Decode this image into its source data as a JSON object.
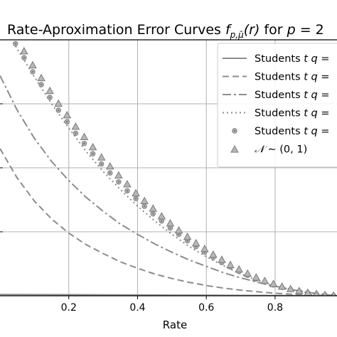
{
  "chart_data": {
    "type": "line",
    "title": "Rate-Aproximation Error Curves f_{p,μ̄}(r) for p = 2",
    "title_parts": {
      "main": "Rate-Aproximation Error Curves ",
      "func": "f",
      "func_sub": "p,",
      "func_sub_mu": "μ̄",
      "func_arg": "(r)",
      "mid": " for ",
      "p_var": "p",
      "p_eq": " = 2"
    },
    "xlabel": "Rate",
    "ylabel": "",
    "xlim": [
      0.0,
      0.98
    ],
    "ylim": [
      0.0,
      2.0
    ],
    "x_ticks": [
      0.2,
      0.4,
      0.6,
      0.8
    ],
    "x_tick_labels": [
      "0.2",
      "0.4",
      "0.6",
      "0.8"
    ],
    "y_gridlines": [
      0.5,
      1.0,
      1.5
    ],
    "grid": true,
    "legend_position": "top-right",
    "legend_labels": [
      {
        "prefix": "Students ",
        "var_t": "t",
        "mid": " ",
        "var_q": "q",
        "suffix": " ="
      },
      {
        "prefix": "Students ",
        "var_t": "t",
        "mid": " ",
        "var_q": "q",
        "suffix": " ="
      },
      {
        "prefix": "Students ",
        "var_t": "t",
        "mid": " ",
        "var_q": "q",
        "suffix": " ="
      },
      {
        "prefix": "Students ",
        "var_t": "t",
        "mid": " ",
        "var_q": "q",
        "suffix": " ="
      },
      {
        "prefix": "Students ",
        "var_t": "t",
        "mid": " ",
        "var_q": "q",
        "suffix": " ="
      },
      {
        "prefix": "",
        "var_n": "𝒩",
        "suffix": " ∼ (0, 1)"
      }
    ],
    "series": [
      {
        "name": "Students t q =",
        "style": "solid",
        "x": [
          0.0,
          0.1,
          0.2,
          0.3,
          0.4,
          0.5,
          0.6,
          0.7,
          0.8,
          0.9,
          0.98
        ],
        "y": [
          0.01,
          0.009,
          0.008,
          0.007,
          0.006,
          0.005,
          0.004,
          0.003,
          0.002,
          0.001,
          0.0
        ]
      },
      {
        "name": "Students t q =",
        "style": "dashed",
        "x": [
          0.0,
          0.05,
          0.1,
          0.15,
          0.2,
          0.25,
          0.3,
          0.35,
          0.4,
          0.45,
          0.5,
          0.55,
          0.6,
          0.65,
          0.7,
          0.75,
          0.8,
          0.85,
          0.9,
          0.95,
          0.98
        ],
        "y": [
          1.15,
          0.92,
          0.74,
          0.6,
          0.49,
          0.4,
          0.33,
          0.265,
          0.215,
          0.17,
          0.135,
          0.105,
          0.08,
          0.06,
          0.044,
          0.031,
          0.02,
          0.012,
          0.006,
          0.002,
          0.0
        ]
      },
      {
        "name": "Students t q =",
        "style": "dashdot",
        "x": [
          0.0,
          0.05,
          0.1,
          0.15,
          0.2,
          0.25,
          0.3,
          0.35,
          0.4,
          0.45,
          0.5,
          0.55,
          0.6,
          0.65,
          0.7,
          0.75,
          0.8,
          0.85,
          0.9,
          0.95,
          0.98
        ],
        "y": [
          1.72,
          1.45,
          1.23,
          1.05,
          0.9,
          0.77,
          0.66,
          0.56,
          0.48,
          0.405,
          0.34,
          0.28,
          0.23,
          0.18,
          0.14,
          0.105,
          0.075,
          0.048,
          0.025,
          0.008,
          0.0
        ]
      },
      {
        "name": "Students t q =",
        "style": "dotted",
        "x": [
          0.0,
          0.05,
          0.1,
          0.15,
          0.2,
          0.25,
          0.3,
          0.35,
          0.4,
          0.45,
          0.5,
          0.55,
          0.6,
          0.65,
          0.7,
          0.75,
          0.8,
          0.85,
          0.9,
          0.95,
          0.98
        ],
        "y": [
          2.15,
          1.93,
          1.71,
          1.5,
          1.31,
          1.13,
          0.97,
          0.83,
          0.7,
          0.585,
          0.48,
          0.385,
          0.305,
          0.235,
          0.17,
          0.12,
          0.08,
          0.046,
          0.022,
          0.006,
          0.0
        ]
      },
      {
        "name": "Students t q =",
        "style": "circles",
        "x": [
          0.02,
          0.045,
          0.07,
          0.095,
          0.12,
          0.145,
          0.17,
          0.195,
          0.22,
          0.245,
          0.27,
          0.295,
          0.32,
          0.345,
          0.37,
          0.395,
          0.42,
          0.445,
          0.47,
          0.495,
          0.52,
          0.545,
          0.57,
          0.595,
          0.62,
          0.645,
          0.67,
          0.695,
          0.72,
          0.745,
          0.77,
          0.795,
          0.82,
          0.845,
          0.87,
          0.895,
          0.92,
          0.945,
          0.97
        ],
        "y": [
          2.09,
          1.97,
          1.86,
          1.75,
          1.65,
          1.55,
          1.45,
          1.36,
          1.27,
          1.19,
          1.11,
          1.03,
          0.96,
          0.89,
          0.82,
          0.76,
          0.7,
          0.64,
          0.585,
          0.53,
          0.48,
          0.43,
          0.385,
          0.34,
          0.3,
          0.26,
          0.225,
          0.19,
          0.16,
          0.132,
          0.107,
          0.085,
          0.065,
          0.048,
          0.034,
          0.022,
          0.012,
          0.005,
          0.001
        ]
      },
      {
        "name": "𝒩 ∼ (0, 1)",
        "style": "triangles",
        "x": [
          0.02,
          0.045,
          0.07,
          0.095,
          0.12,
          0.145,
          0.17,
          0.195,
          0.22,
          0.245,
          0.27,
          0.295,
          0.32,
          0.345,
          0.37,
          0.395,
          0.42,
          0.445,
          0.47,
          0.495,
          0.52,
          0.545,
          0.57,
          0.595,
          0.62,
          0.645,
          0.67,
          0.695,
          0.72,
          0.745,
          0.77,
          0.795,
          0.82,
          0.845,
          0.87,
          0.895,
          0.92,
          0.945,
          0.97
        ],
        "y": [
          2.14,
          2.02,
          1.91,
          1.8,
          1.7,
          1.6,
          1.5,
          1.41,
          1.32,
          1.24,
          1.16,
          1.08,
          1.01,
          0.94,
          0.87,
          0.8,
          0.74,
          0.68,
          0.62,
          0.565,
          0.51,
          0.46,
          0.41,
          0.365,
          0.32,
          0.28,
          0.24,
          0.205,
          0.172,
          0.142,
          0.115,
          0.091,
          0.07,
          0.052,
          0.036,
          0.023,
          0.013,
          0.005,
          0.001
        ]
      }
    ],
    "colors": {
      "series": "#8c8c8c",
      "marker_edge": "#7a7a7a",
      "marker_face": "#b8b8b8",
      "grid": "#b0b0b0",
      "axes": "#000000",
      "legend_edge": "#cccccc"
    }
  }
}
